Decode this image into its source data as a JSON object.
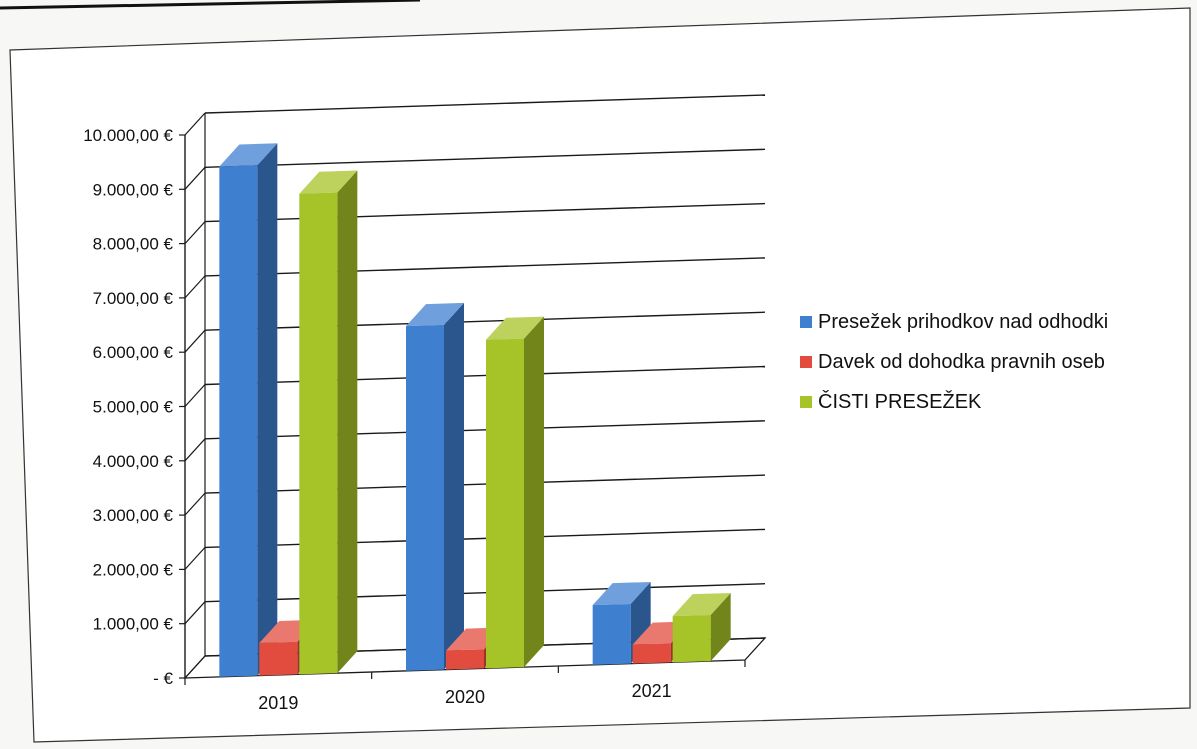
{
  "chart_data": {
    "type": "bar",
    "categories": [
      "2019",
      "2020",
      "2021"
    ],
    "series": [
      {
        "name": "Presežek prihodkov nad odhodki",
        "values": [
          9400,
          6350,
          1100
        ],
        "color": "#3f7fd0"
      },
      {
        "name": "Davek od dohodka pravnih oseb",
        "values": [
          600,
          350,
          350
        ],
        "color": "#e24c3f"
      },
      {
        "name": "ČISTI PRESEŽEK",
        "values": [
          8850,
          6050,
          850
        ],
        "color": "#a6c327"
      }
    ],
    "ylim": [
      0,
      10000
    ],
    "yticks": [
      {
        "value": 0,
        "label": "-  €"
      },
      {
        "value": 1000,
        "label": "1.000,00 €"
      },
      {
        "value": 2000,
        "label": "2.000,00 €"
      },
      {
        "value": 3000,
        "label": "3.000,00 €"
      },
      {
        "value": 4000,
        "label": "4.000,00 €"
      },
      {
        "value": 5000,
        "label": "5.000,00 €"
      },
      {
        "value": 6000,
        "label": "6.000,00 €"
      },
      {
        "value": 7000,
        "label": "7.000,00 €"
      },
      {
        "value": 8000,
        "label": "8.000,00 €"
      },
      {
        "value": 9000,
        "label": "9.000,00 €"
      },
      {
        "value": 10000,
        "label": "10.000,00 €"
      }
    ],
    "grid": true,
    "legend_position": "right",
    "style": "3d-clustered-column"
  }
}
